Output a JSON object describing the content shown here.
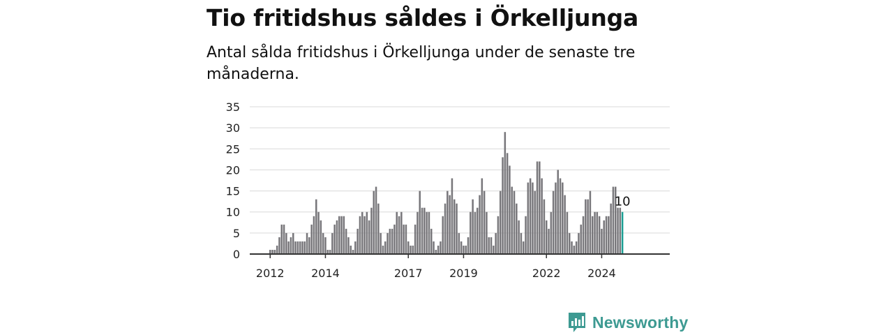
{
  "header": {
    "title": "Tio fritidshus såldes i Örkelljunga",
    "subtitle": "Antal sålda fritidshus i Örkelljunga under de senaste tre månaderna."
  },
  "brand": {
    "name": "Newsworthy",
    "icon": "newsworthy-logo-icon",
    "color": "#3d9a92"
  },
  "colors": {
    "bar": "#77767a",
    "highlight": "#1a9e93",
    "grid": "#d9d9d9",
    "axis": "#333333"
  },
  "chart_data": {
    "type": "bar",
    "x_start": "2012-01",
    "x_end": "2024-12",
    "x_tick_labels": [
      "2012",
      "2014",
      "2017",
      "2019",
      "2022",
      "2024"
    ],
    "ylim": [
      0,
      35
    ],
    "y_ticks": [
      "0",
      "5",
      "10",
      "15",
      "20",
      "25",
      "30",
      "35"
    ],
    "grid": true,
    "highlight_label": "10",
    "values": [
      1,
      1,
      1,
      2,
      4,
      7,
      7,
      5,
      3,
      4,
      5,
      3,
      3,
      3,
      3,
      3,
      5,
      4,
      7,
      9,
      13,
      10,
      8,
      5,
      4,
      1,
      1,
      5,
      7,
      8,
      9,
      9,
      9,
      6,
      4,
      2,
      1,
      3,
      6,
      9,
      10,
      9,
      10,
      8,
      11,
      15,
      16,
      12,
      5,
      2,
      3,
      5,
      6,
      6,
      7,
      10,
      9,
      10,
      7,
      7,
      3,
      2,
      2,
      7,
      10,
      15,
      11,
      11,
      10,
      10,
      6,
      3,
      1,
      2,
      3,
      9,
      12,
      15,
      14,
      18,
      13,
      12,
      5,
      3,
      2,
      2,
      4,
      10,
      13,
      10,
      11,
      14,
      18,
      15,
      10,
      4,
      4,
      2,
      5,
      9,
      15,
      23,
      29,
      24,
      21,
      16,
      15,
      12,
      8,
      5,
      3,
      9,
      17,
      18,
      17,
      15,
      22,
      22,
      18,
      13,
      8,
      6,
      10,
      15,
      17,
      20,
      18,
      17,
      14,
      10,
      5,
      3,
      2,
      3,
      5,
      7,
      9,
      13,
      13,
      15,
      9,
      10,
      10,
      9,
      6,
      8,
      9,
      9,
      12,
      16,
      16,
      11,
      11,
      10
    ]
  }
}
